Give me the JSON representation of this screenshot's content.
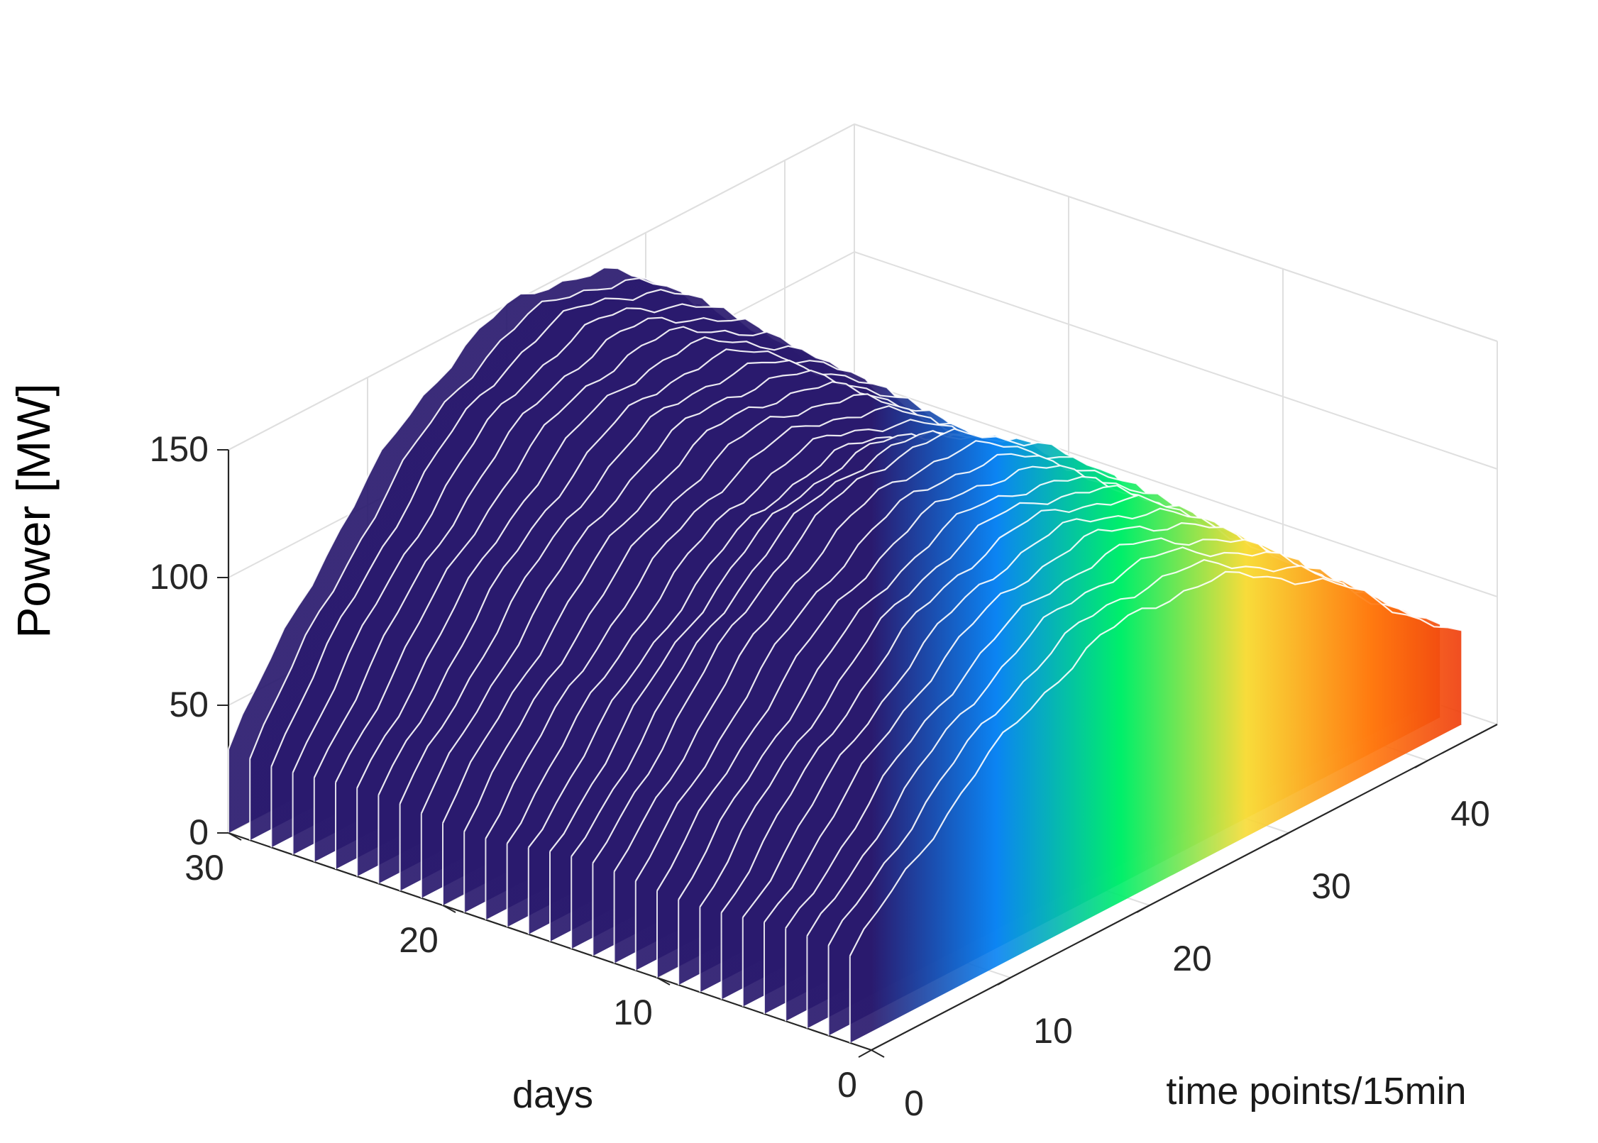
{
  "chart_data": {
    "type": "3d-waterfall",
    "xlabel": "time points/15min",
    "ylabel": "days",
    "zlabel": "Power [MW]",
    "xlim": [
      0,
      45
    ],
    "ylim": [
      0,
      30
    ],
    "zlim": [
      0,
      150
    ],
    "x_ticks": [
      0,
      10,
      20,
      30,
      40
    ],
    "y_ticks": [
      0,
      10,
      20,
      30
    ],
    "z_ticks": [
      0,
      50,
      100,
      150
    ],
    "x_tick_labels": [
      "0",
      "10",
      "20",
      "30",
      "40"
    ],
    "y_tick_labels": [
      "0",
      "10",
      "20",
      "30"
    ],
    "z_tick_labels": [
      "0",
      "50",
      "100",
      "150"
    ],
    "grid": true,
    "colormap": [
      "#2a1a6e",
      "#0b84f3",
      "#00ef6a",
      "#f8dc3a",
      "#ff7a10",
      "#e9290d"
    ],
    "series_shape": "half-sine daily generation profile",
    "time_points": 45,
    "days": [
      1,
      2,
      3,
      4,
      5,
      6,
      7,
      8,
      9,
      10,
      11,
      12,
      13,
      14,
      15,
      16,
      17,
      18,
      19,
      20,
      21,
      22,
      23,
      24,
      25,
      26,
      27,
      28,
      29,
      30
    ],
    "base_power": 34,
    "peak_power_by_day": [
      110,
      112,
      115,
      117,
      120,
      122,
      124,
      125,
      126,
      128,
      130,
      132,
      134,
      131,
      128,
      125,
      126,
      128,
      130,
      132,
      134,
      136,
      138,
      140,
      142,
      144,
      146,
      148,
      149,
      150
    ]
  }
}
